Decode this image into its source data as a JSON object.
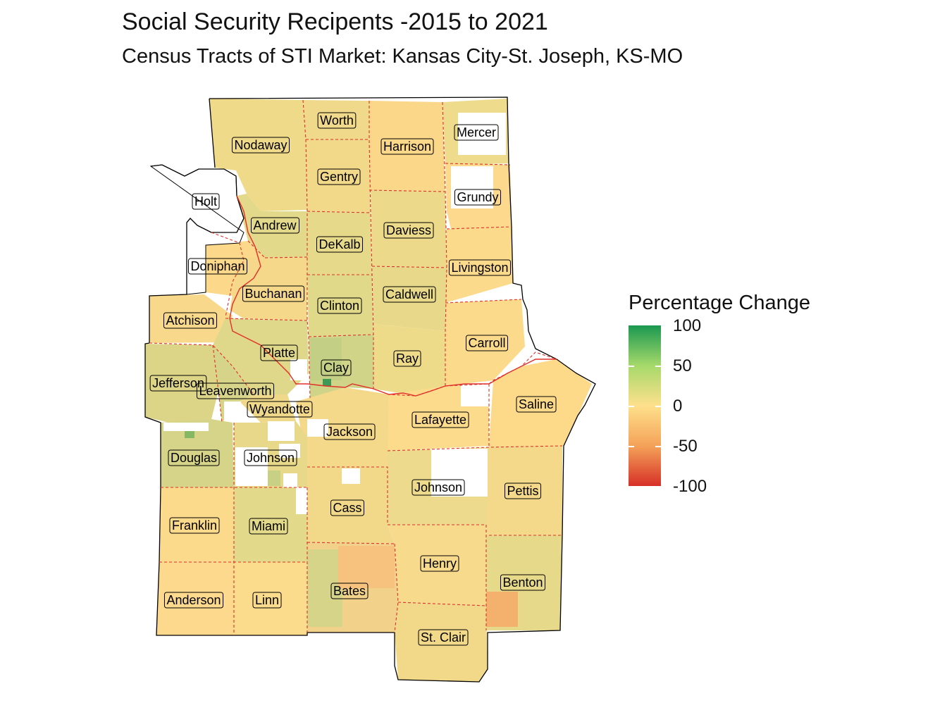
{
  "title": "Social Security Recipents -2015 to 2021",
  "subtitle": "Census Tracts of STI Market: Kansas City-St. Joseph, KS-MO",
  "legend": {
    "title": "Percentage Change",
    "labels": [
      "100",
      "50",
      "0",
      "-50",
      "-100"
    ],
    "colors": {
      "high": "#1a9850",
      "mid_high": "#a6d96a",
      "mid": "#fee08b",
      "mid_low": "#f4a259",
      "low": "#d73027"
    }
  },
  "counties": [
    {
      "name": "Worth"
    },
    {
      "name": "Mercer"
    },
    {
      "name": "Nodaway"
    },
    {
      "name": "Harrison"
    },
    {
      "name": "Gentry"
    },
    {
      "name": "Grundy"
    },
    {
      "name": "Holt"
    },
    {
      "name": "Andrew"
    },
    {
      "name": "Daviess"
    },
    {
      "name": "DeKalb"
    },
    {
      "name": "Livingston"
    },
    {
      "name": "Doniphan"
    },
    {
      "name": "Buchanan"
    },
    {
      "name": "Caldwell"
    },
    {
      "name": "Clinton"
    },
    {
      "name": "Atchison"
    },
    {
      "name": "Carroll"
    },
    {
      "name": "Platte"
    },
    {
      "name": "Ray"
    },
    {
      "name": "Clay"
    },
    {
      "name": "Jefferson"
    },
    {
      "name": "Leavenworth"
    },
    {
      "name": "Saline"
    },
    {
      "name": "Wyandotte"
    },
    {
      "name": "Lafayette"
    },
    {
      "name": "Jackson"
    },
    {
      "name": "Douglas"
    },
    {
      "name": "Johnson"
    },
    {
      "name": "Johnson"
    },
    {
      "name": "Pettis"
    },
    {
      "name": "Cass"
    },
    {
      "name": "Franklin"
    },
    {
      "name": "Miami"
    },
    {
      "name": "Henry"
    },
    {
      "name": "Benton"
    },
    {
      "name": "Bates"
    },
    {
      "name": "Anderson"
    },
    {
      "name": "Linn"
    },
    {
      "name": "St. Clair"
    }
  ]
}
